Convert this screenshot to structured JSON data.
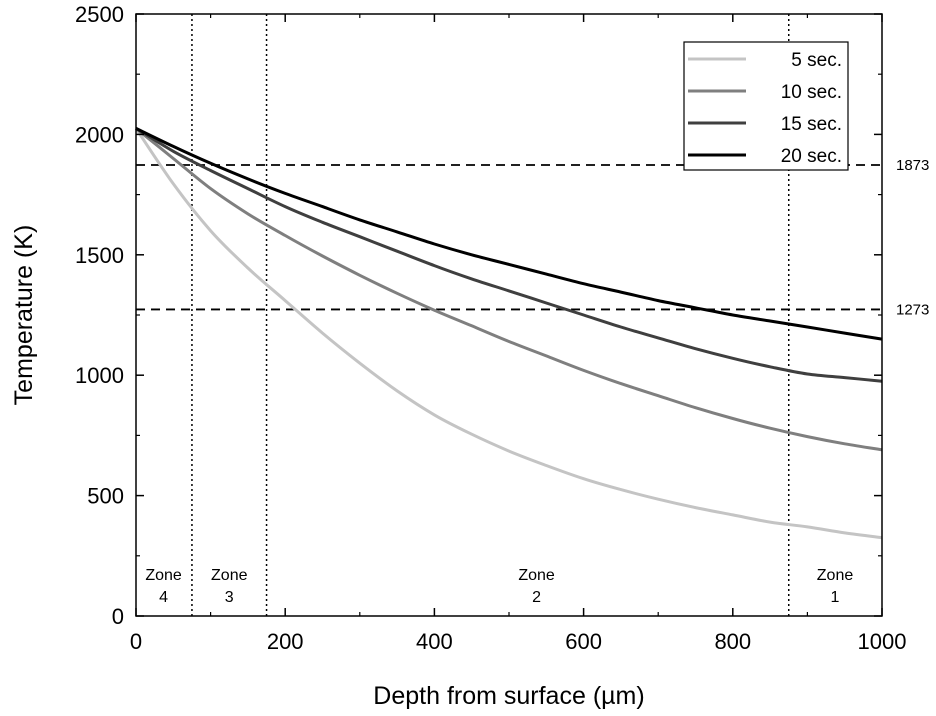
{
  "chart_data": {
    "type": "line",
    "xlabel": "Depth from surface (µm)",
    "ylabel": "Temperature (K)",
    "xlim": [
      0,
      1000
    ],
    "ylim": [
      0,
      2500
    ],
    "xticks": [
      0,
      200,
      400,
      600,
      800,
      1000
    ],
    "yticks": [
      0,
      500,
      1000,
      1500,
      2000,
      2500
    ],
    "grid": false,
    "legend_position": "top-right",
    "x": [
      0,
      50,
      100,
      150,
      200,
      250,
      300,
      350,
      400,
      450,
      500,
      550,
      600,
      650,
      700,
      750,
      800,
      850,
      900,
      950,
      1000
    ],
    "series": [
      {
        "name": "5 sec.",
        "color": "#c4c4c4",
        "values": [
          2025,
          1795,
          1600,
          1445,
          1310,
          1175,
          1050,
          935,
          835,
          755,
          685,
          625,
          570,
          525,
          485,
          450,
          420,
          390,
          370,
          345,
          325
        ]
      },
      {
        "name": "10 sec.",
        "color": "#7f7f7f",
        "values": [
          2025,
          1900,
          1775,
          1670,
          1580,
          1495,
          1415,
          1340,
          1270,
          1205,
          1140,
          1080,
          1020,
          965,
          915,
          865,
          820,
          780,
          745,
          715,
          690
        ]
      },
      {
        "name": "15 sec.",
        "color": "#3f3f3f",
        "values": [
          2025,
          1930,
          1850,
          1775,
          1700,
          1635,
          1575,
          1515,
          1455,
          1400,
          1350,
          1300,
          1250,
          1200,
          1155,
          1110,
          1070,
          1035,
          1005,
          990,
          975
        ]
      },
      {
        "name": "20 sec.",
        "color": "#000000",
        "values": [
          2025,
          1950,
          1880,
          1815,
          1755,
          1700,
          1645,
          1595,
          1545,
          1500,
          1460,
          1420,
          1380,
          1345,
          1310,
          1280,
          1250,
          1225,
          1200,
          1175,
          1150
        ]
      }
    ],
    "reference_lines": [
      {
        "value": 1873,
        "label": "1873"
      },
      {
        "value": 1273,
        "label": "1273"
      }
    ],
    "zone_boundaries": [
      75,
      175,
      875
    ],
    "zones": [
      {
        "line1": "Zone",
        "line2": "4",
        "x_center": 37
      },
      {
        "line1": "Zone",
        "line2": "3",
        "x_center": 125
      },
      {
        "line1": "Zone",
        "line2": "2",
        "x_center": 537
      },
      {
        "line1": "Zone",
        "line2": "1",
        "x_center": 937
      }
    ]
  }
}
